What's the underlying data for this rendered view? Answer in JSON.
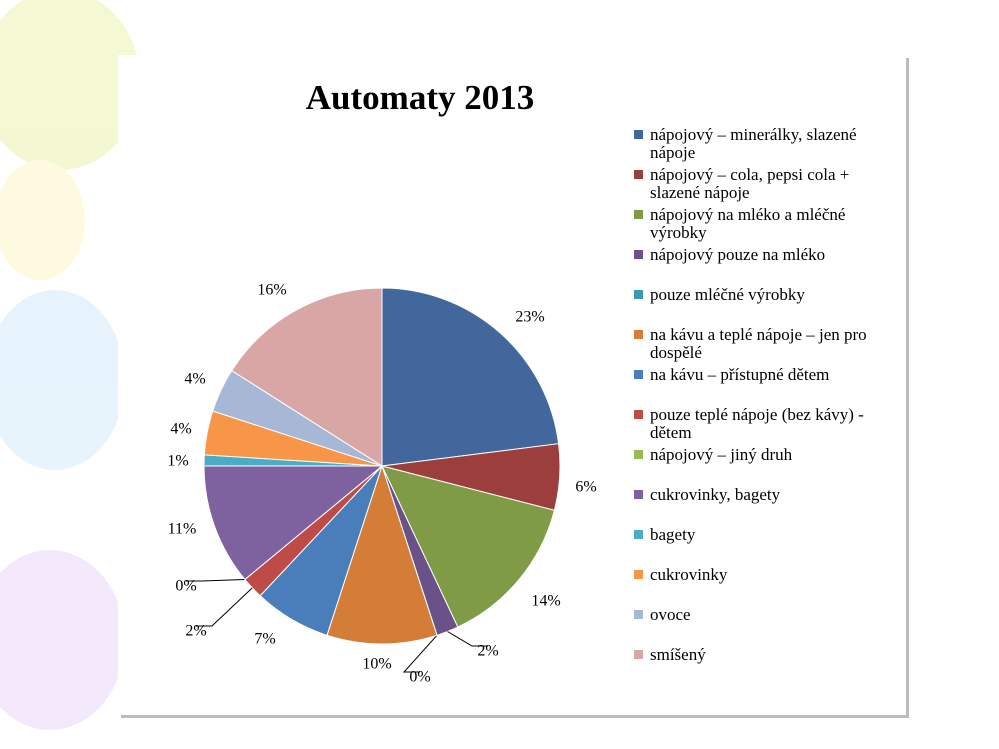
{
  "chart_data": {
    "type": "pie",
    "title": "Automaty 2013",
    "categories": [
      "nápojový – minerálky, slazené nápoje",
      "nápojový – cola, pepsi cola + slazené nápoje",
      "nápojový na mléko a mléčné výrobky",
      "nápojový pouze na mléko",
      "pouze mléčné výrobky",
      "na kávu a teplé nápoje – jen pro dospělé",
      "na kávu – přístupné dětem",
      "pouze teplé nápoje (bez kávy) - dětem",
      "nápojový – jiný druh",
      "cukrovinky, bagety",
      "bagety",
      "cukrovinky",
      "ovoce",
      "smíšený"
    ],
    "values": [
      23,
      6,
      14,
      2,
      0,
      10,
      7,
      2,
      0,
      11,
      1,
      4,
      4,
      16
    ],
    "value_labels": [
      "23%",
      "6%",
      "14%",
      "2%",
      "0%",
      "10%",
      "7%",
      "2%",
      "0%",
      "11%",
      "1%",
      "4%",
      "4%",
      "16%"
    ],
    "colors": [
      "#41679c",
      "#9c3f3c",
      "#7f9b45",
      "#6a5189",
      "#3a99b1",
      "#d47d36",
      "#4a7ebb",
      "#bd4b48",
      "#98b954",
      "#7e62a0",
      "#4bacc6",
      "#f79646",
      "#a7b8d6",
      "#d8a6a5"
    ],
    "legend": "right"
  }
}
